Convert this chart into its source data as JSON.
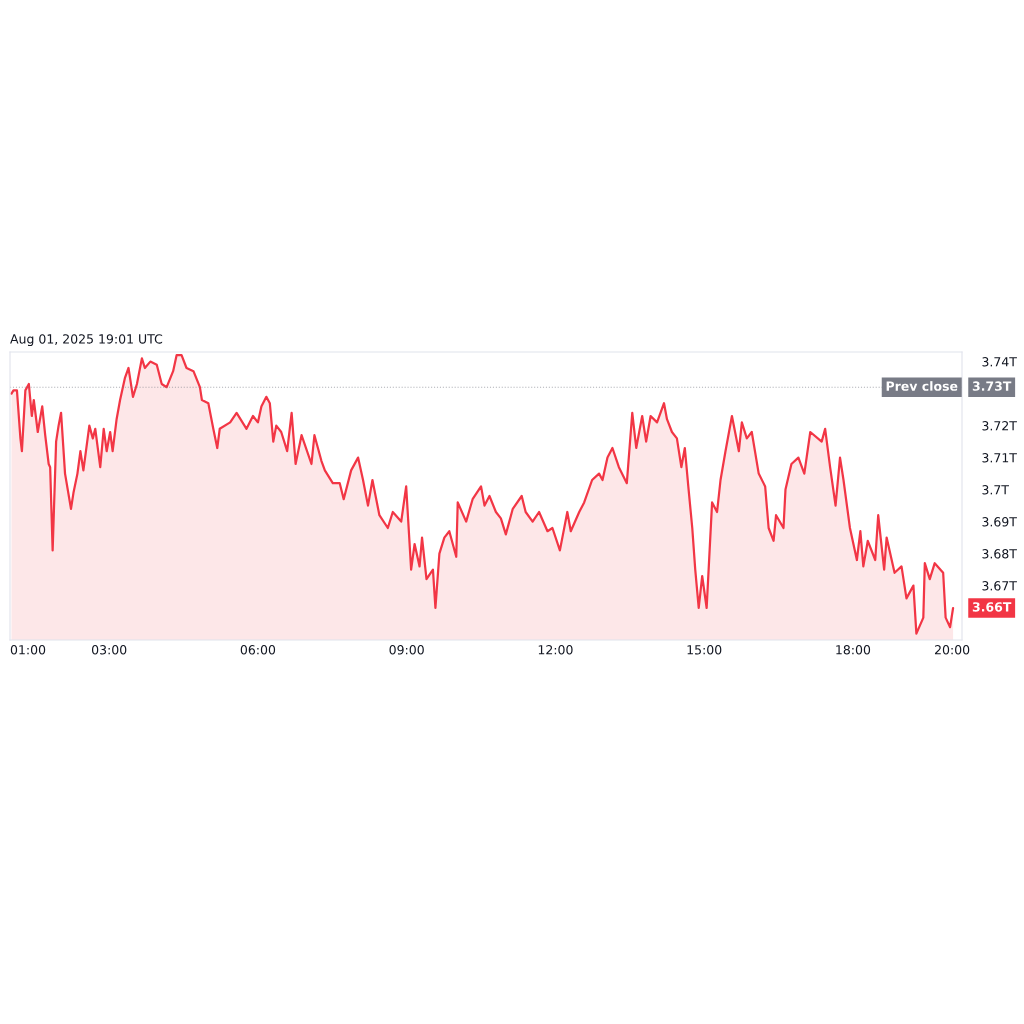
{
  "chart_data": {
    "type": "area",
    "title": "Aug 01, 2025 19:01 UTC",
    "x": [
      1.03,
      1.07,
      1.14,
      1.21,
      1.24,
      1.31,
      1.38,
      1.44,
      1.48,
      1.56,
      1.65,
      1.71,
      1.78,
      1.81,
      1.86,
      1.93,
      1.98,
      2.03,
      2.11,
      2.23,
      2.28,
      2.36,
      2.42,
      2.48,
      2.6,
      2.67,
      2.72,
      2.82,
      2.89,
      2.95,
      3.02,
      3.07,
      3.15,
      3.22,
      3.32,
      3.39,
      3.48,
      3.56,
      3.66,
      3.72,
      3.83,
      3.96,
      4.06,
      4.16,
      4.29,
      4.36,
      4.46,
      4.56,
      4.7,
      4.83,
      4.87,
      5.0,
      5.1,
      5.18,
      5.23,
      5.44,
      5.57,
      5.77,
      5.9,
      6.0,
      6.07,
      6.17,
      6.24,
      6.31,
      6.37,
      6.47,
      6.59,
      6.68,
      6.76,
      6.88,
      7.08,
      7.14,
      7.28,
      7.35,
      7.51,
      7.65,
      7.73,
      7.88,
      8.02,
      8.12,
      8.22,
      8.31,
      8.45,
      8.62,
      8.72,
      8.89,
      8.99,
      9.09,
      9.16,
      9.26,
      9.31,
      9.4,
      9.53,
      9.58,
      9.66,
      9.76,
      9.86,
      10.0,
      10.03,
      10.2,
      10.33,
      10.5,
      10.57,
      10.67,
      10.8,
      10.9,
      11.0,
      11.14,
      11.32,
      11.4,
      11.54,
      11.67,
      11.84,
      11.94,
      12.09,
      12.24,
      12.31,
      12.48,
      12.58,
      12.74,
      12.88,
      12.95,
      13.05,
      13.15,
      13.28,
      13.44,
      13.55,
      13.63,
      13.75,
      13.83,
      13.92,
      14.05,
      14.19,
      14.25,
      14.35,
      14.45,
      14.54,
      14.61,
      14.68,
      14.76,
      14.82,
      14.89,
      14.96,
      15.05,
      15.16,
      15.26,
      15.33,
      15.43,
      15.56,
      15.7,
      15.76,
      15.86,
      15.96,
      16.1,
      16.23,
      16.3,
      16.4,
      16.45,
      16.6,
      16.64,
      16.76,
      16.9,
      17.02,
      17.14,
      17.37,
      17.44,
      17.54,
      17.65,
      17.74,
      17.81,
      17.94,
      18.08,
      18.15,
      18.21,
      18.3,
      18.45,
      18.51,
      18.63,
      18.68,
      18.84,
      18.98,
      19.08,
      19.22,
      19.28,
      19.42,
      19.45,
      19.55,
      19.65,
      19.82,
      19.87,
      19.96,
      20.02
    ],
    "series": [
      {
        "color": "#f23645",
        "values": [
          3.73,
          3.731,
          3.731,
          3.716,
          3.712,
          3.731,
          3.733,
          3.723,
          3.728,
          3.718,
          3.726,
          3.717,
          3.708,
          3.707,
          3.681,
          3.715,
          3.72,
          3.724,
          3.705,
          3.694,
          3.699,
          3.705,
          3.712,
          3.706,
          3.72,
          3.716,
          3.719,
          3.707,
          3.719,
          3.712,
          3.718,
          3.712,
          3.722,
          3.728,
          3.735,
          3.738,
          3.729,
          3.733,
          3.741,
          3.738,
          3.74,
          3.739,
          3.733,
          3.732,
          3.737,
          3.742,
          3.742,
          3.738,
          3.737,
          3.732,
          3.728,
          3.727,
          3.719,
          3.713,
          3.719,
          3.721,
          3.724,
          3.719,
          3.723,
          3.721,
          3.726,
          3.729,
          3.727,
          3.715,
          3.72,
          3.718,
          3.712,
          3.724,
          3.708,
          3.717,
          3.708,
          3.717,
          3.709,
          3.706,
          3.702,
          3.702,
          3.697,
          3.706,
          3.71,
          3.703,
          3.695,
          3.703,
          3.692,
          3.688,
          3.693,
          3.69,
          3.701,
          3.675,
          3.683,
          3.676,
          3.685,
          3.672,
          3.675,
          3.663,
          3.68,
          3.685,
          3.687,
          3.679,
          3.696,
          3.69,
          3.697,
          3.701,
          3.695,
          3.698,
          3.693,
          3.691,
          3.686,
          3.694,
          3.698,
          3.693,
          3.69,
          3.693,
          3.687,
          3.688,
          3.681,
          3.693,
          3.687,
          3.693,
          3.696,
          3.703,
          3.705,
          3.703,
          3.71,
          3.713,
          3.707,
          3.702,
          3.724,
          3.713,
          3.723,
          3.715,
          3.723,
          3.721,
          3.727,
          3.722,
          3.718,
          3.716,
          3.707,
          3.713,
          3.701,
          3.688,
          3.675,
          3.663,
          3.673,
          3.663,
          3.696,
          3.693,
          3.703,
          3.712,
          3.723,
          3.712,
          3.721,
          3.716,
          3.718,
          3.705,
          3.701,
          3.688,
          3.684,
          3.692,
          3.688,
          3.7,
          3.708,
          3.71,
          3.705,
          3.718,
          3.715,
          3.719,
          3.707,
          3.695,
          3.71,
          3.703,
          3.688,
          3.678,
          3.687,
          3.676,
          3.684,
          3.678,
          3.692,
          3.675,
          3.685,
          3.674,
          3.676,
          3.666,
          3.67,
          3.655,
          3.66,
          3.677,
          3.672,
          3.677,
          3.674,
          3.66,
          3.657,
          3.663
        ]
      }
    ],
    "xlim": [
      1.0,
      20.2
    ],
    "ylim": [
      3.653,
      3.743
    ],
    "xticks": [
      {
        "value": 1,
        "label": "01:00"
      },
      {
        "value": 3,
        "label": "03:00"
      },
      {
        "value": 6,
        "label": "06:00"
      },
      {
        "value": 9,
        "label": "09:00"
      },
      {
        "value": 12,
        "label": "12:00"
      },
      {
        "value": 15,
        "label": "15:00"
      },
      {
        "value": 18,
        "label": "18:00"
      },
      {
        "value": 20,
        "label": "20:00"
      }
    ],
    "yticks": [
      {
        "value": 3.67,
        "label": "3.67T"
      },
      {
        "value": 3.68,
        "label": "3.68T"
      },
      {
        "value": 3.69,
        "label": "3.69T"
      },
      {
        "value": 3.7,
        "label": "3.7T"
      },
      {
        "value": 3.71,
        "label": "3.71T"
      },
      {
        "value": 3.72,
        "label": "3.72T"
      },
      {
        "value": 3.74,
        "label": "3.74T"
      }
    ],
    "ref_lines": [
      {
        "axis": "y",
        "value": 3.732,
        "label": "Prev close",
        "color": "#787b86",
        "line_style": "dotted"
      }
    ],
    "annotations": [
      "3.73T",
      "3.66T"
    ]
  }
}
